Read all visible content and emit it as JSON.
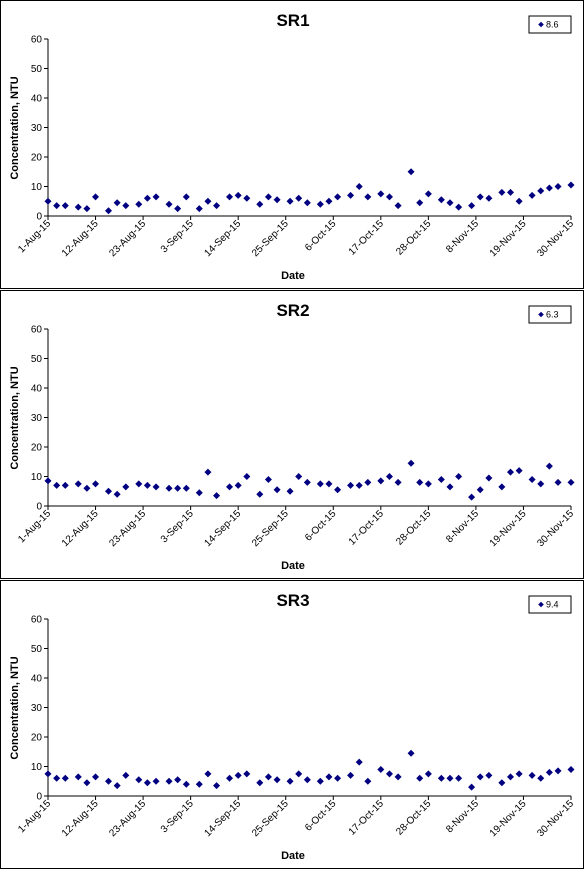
{
  "chart_data": [
    {
      "type": "scatter",
      "title": "SR1",
      "xlabel": "Date",
      "ylabel": "Concentration, NTU",
      "ylim": [
        0,
        60
      ],
      "yticks": [
        0,
        10,
        20,
        30,
        40,
        50,
        60
      ],
      "xlim": [
        "2015-08-01",
        "2015-11-30"
      ],
      "xtick_labels": [
        "1-Aug-15",
        "12-Aug-15",
        "23-Aug-15",
        "3-Sep-15",
        "14-Sep-15",
        "25-Sep-15",
        "6-Oct-15",
        "17-Oct-15",
        "28-Oct-15",
        "8-Nov-15",
        "19-Nov-15",
        "30-Nov-15"
      ],
      "xtick_dates": [
        "2015-08-01",
        "2015-08-12",
        "2015-08-23",
        "2015-09-03",
        "2015-09-14",
        "2015-09-25",
        "2015-10-06",
        "2015-10-17",
        "2015-10-28",
        "2015-11-08",
        "2015-11-19",
        "2015-11-30"
      ],
      "grid": false,
      "legend": "top-right",
      "marker_color": "#000080",
      "series": [
        {
          "name": "8.6",
          "x": [
            "2015-08-01",
            "2015-08-03",
            "2015-08-05",
            "2015-08-08",
            "2015-08-10",
            "2015-08-12",
            "2015-08-15",
            "2015-08-17",
            "2015-08-19",
            "2015-08-22",
            "2015-08-24",
            "2015-08-26",
            "2015-08-29",
            "2015-08-31",
            "2015-09-02",
            "2015-09-05",
            "2015-09-07",
            "2015-09-09",
            "2015-09-12",
            "2015-09-14",
            "2015-09-16",
            "2015-09-19",
            "2015-09-21",
            "2015-09-23",
            "2015-09-26",
            "2015-09-28",
            "2015-09-30",
            "2015-10-03",
            "2015-10-05",
            "2015-10-07",
            "2015-10-10",
            "2015-10-12",
            "2015-10-14",
            "2015-10-17",
            "2015-10-19",
            "2015-10-21",
            "2015-10-24",
            "2015-10-26",
            "2015-10-28",
            "2015-10-31",
            "2015-11-02",
            "2015-11-04",
            "2015-11-07",
            "2015-11-09",
            "2015-11-11",
            "2015-11-14",
            "2015-11-16",
            "2015-11-18",
            "2015-11-21",
            "2015-11-23",
            "2015-11-25",
            "2015-11-27",
            "2015-11-30"
          ],
          "y": [
            5.0,
            3.5,
            3.5,
            3.0,
            2.5,
            6.5,
            1.8,
            4.5,
            3.5,
            4.0,
            6.0,
            6.5,
            4.0,
            2.5,
            6.5,
            2.5,
            5.0,
            3.5,
            6.5,
            7.0,
            6.0,
            4.0,
            6.5,
            5.5,
            5.0,
            6.0,
            4.5,
            4.0,
            5.0,
            6.5,
            7.0,
            10.0,
            6.5,
            7.5,
            6.5,
            3.5,
            15.0,
            4.5,
            7.5,
            5.5,
            4.5,
            3.0,
            3.5,
            6.5,
            6.0,
            8.0,
            8.0,
            5.0,
            7.0,
            8.5,
            9.5,
            10.0,
            10.5
          ]
        }
      ]
    },
    {
      "type": "scatter",
      "title": "SR2",
      "xlabel": "Date",
      "ylabel": "Concentration, NTU",
      "ylim": [
        0,
        60
      ],
      "yticks": [
        0,
        10,
        20,
        30,
        40,
        50,
        60
      ],
      "xlim": [
        "2015-08-01",
        "2015-11-30"
      ],
      "xtick_labels": [
        "1-Aug-15",
        "12-Aug-15",
        "23-Aug-15",
        "3-Sep-15",
        "14-Sep-15",
        "25-Sep-15",
        "6-Oct-15",
        "17-Oct-15",
        "28-Oct-15",
        "8-Nov-15",
        "19-Nov-15",
        "30-Nov-15"
      ],
      "xtick_dates": [
        "2015-08-01",
        "2015-08-12",
        "2015-08-23",
        "2015-09-03",
        "2015-09-14",
        "2015-09-25",
        "2015-10-06",
        "2015-10-17",
        "2015-10-28",
        "2015-11-08",
        "2015-11-19",
        "2015-11-30"
      ],
      "grid": false,
      "legend": "top-right",
      "marker_color": "#000080",
      "series": [
        {
          "name": "6.3",
          "x": [
            "2015-08-01",
            "2015-08-03",
            "2015-08-05",
            "2015-08-08",
            "2015-08-10",
            "2015-08-12",
            "2015-08-15",
            "2015-08-17",
            "2015-08-19",
            "2015-08-22",
            "2015-08-24",
            "2015-08-26",
            "2015-08-29",
            "2015-08-31",
            "2015-09-02",
            "2015-09-05",
            "2015-09-07",
            "2015-09-09",
            "2015-09-12",
            "2015-09-14",
            "2015-09-16",
            "2015-09-19",
            "2015-09-21",
            "2015-09-23",
            "2015-09-26",
            "2015-09-28",
            "2015-09-30",
            "2015-10-03",
            "2015-10-05",
            "2015-10-07",
            "2015-10-10",
            "2015-10-12",
            "2015-10-14",
            "2015-10-17",
            "2015-10-19",
            "2015-10-21",
            "2015-10-24",
            "2015-10-26",
            "2015-10-28",
            "2015-10-31",
            "2015-11-02",
            "2015-11-04",
            "2015-11-07",
            "2015-11-09",
            "2015-11-11",
            "2015-11-14",
            "2015-11-16",
            "2015-11-18",
            "2015-11-21",
            "2015-11-23",
            "2015-11-25",
            "2015-11-27",
            "2015-11-30"
          ],
          "y": [
            8.5,
            7.0,
            7.0,
            7.5,
            6.0,
            7.5,
            5.0,
            4.0,
            6.5,
            7.5,
            7.0,
            6.5,
            6.0,
            6.0,
            6.0,
            4.5,
            11.5,
            3.5,
            6.5,
            7.0,
            10.0,
            4.0,
            9.0,
            5.5,
            5.0,
            10.0,
            8.0,
            7.5,
            7.5,
            5.5,
            7.0,
            7.0,
            8.0,
            8.5,
            10.0,
            8.0,
            14.5,
            8.0,
            7.5,
            9.0,
            6.5,
            10.0,
            3.0,
            5.5,
            9.5,
            6.5,
            11.5,
            12.0,
            9.0,
            7.5,
            13.5,
            8.0,
            8.0
          ]
        }
      ]
    },
    {
      "type": "scatter",
      "title": "SR3",
      "xlabel": "Date",
      "ylabel": "Concentration, NTU",
      "ylim": [
        0,
        60
      ],
      "yticks": [
        0,
        10,
        20,
        30,
        40,
        50,
        60
      ],
      "xlim": [
        "2015-08-01",
        "2015-11-30"
      ],
      "xtick_labels": [
        "1-Aug-15",
        "12-Aug-15",
        "23-Aug-15",
        "3-Sep-15",
        "14-Sep-15",
        "25-Sep-15",
        "6-Oct-15",
        "17-Oct-15",
        "28-Oct-15",
        "8-Nov-15",
        "19-Nov-15",
        "30-Nov-15"
      ],
      "xtick_dates": [
        "2015-08-01",
        "2015-08-12",
        "2015-08-23",
        "2015-09-03",
        "2015-09-14",
        "2015-09-25",
        "2015-10-06",
        "2015-10-17",
        "2015-10-28",
        "2015-11-08",
        "2015-11-19",
        "2015-11-30"
      ],
      "grid": false,
      "legend": "top-right",
      "marker_color": "#000080",
      "series": [
        {
          "name": "9.4",
          "x": [
            "2015-08-01",
            "2015-08-03",
            "2015-08-05",
            "2015-08-08",
            "2015-08-10",
            "2015-08-12",
            "2015-08-15",
            "2015-08-17",
            "2015-08-19",
            "2015-08-22",
            "2015-08-24",
            "2015-08-26",
            "2015-08-29",
            "2015-08-31",
            "2015-09-02",
            "2015-09-05",
            "2015-09-07",
            "2015-09-09",
            "2015-09-12",
            "2015-09-14",
            "2015-09-16",
            "2015-09-19",
            "2015-09-21",
            "2015-09-23",
            "2015-09-26",
            "2015-09-28",
            "2015-09-30",
            "2015-10-03",
            "2015-10-05",
            "2015-10-07",
            "2015-10-10",
            "2015-10-12",
            "2015-10-14",
            "2015-10-17",
            "2015-10-19",
            "2015-10-21",
            "2015-10-24",
            "2015-10-26",
            "2015-10-28",
            "2015-10-31",
            "2015-11-02",
            "2015-11-04",
            "2015-11-07",
            "2015-11-09",
            "2015-11-11",
            "2015-11-14",
            "2015-11-16",
            "2015-11-18",
            "2015-11-21",
            "2015-11-23",
            "2015-11-25",
            "2015-11-27",
            "2015-11-30"
          ],
          "y": [
            7.5,
            6.0,
            6.0,
            6.5,
            4.5,
            6.5,
            5.0,
            3.5,
            7.0,
            5.5,
            4.5,
            5.0,
            5.0,
            5.5,
            4.0,
            4.0,
            7.5,
            3.5,
            6.0,
            7.0,
            7.5,
            4.5,
            6.5,
            5.5,
            5.0,
            7.5,
            5.5,
            5.0,
            6.5,
            6.0,
            7.0,
            11.5,
            5.0,
            9.0,
            7.5,
            6.5,
            14.5,
            6.0,
            7.5,
            6.0,
            6.0,
            6.0,
            3.0,
            6.5,
            7.0,
            4.5,
            6.5,
            7.5,
            7.0,
            6.0,
            8.0,
            8.5,
            9.0
          ]
        }
      ]
    }
  ]
}
